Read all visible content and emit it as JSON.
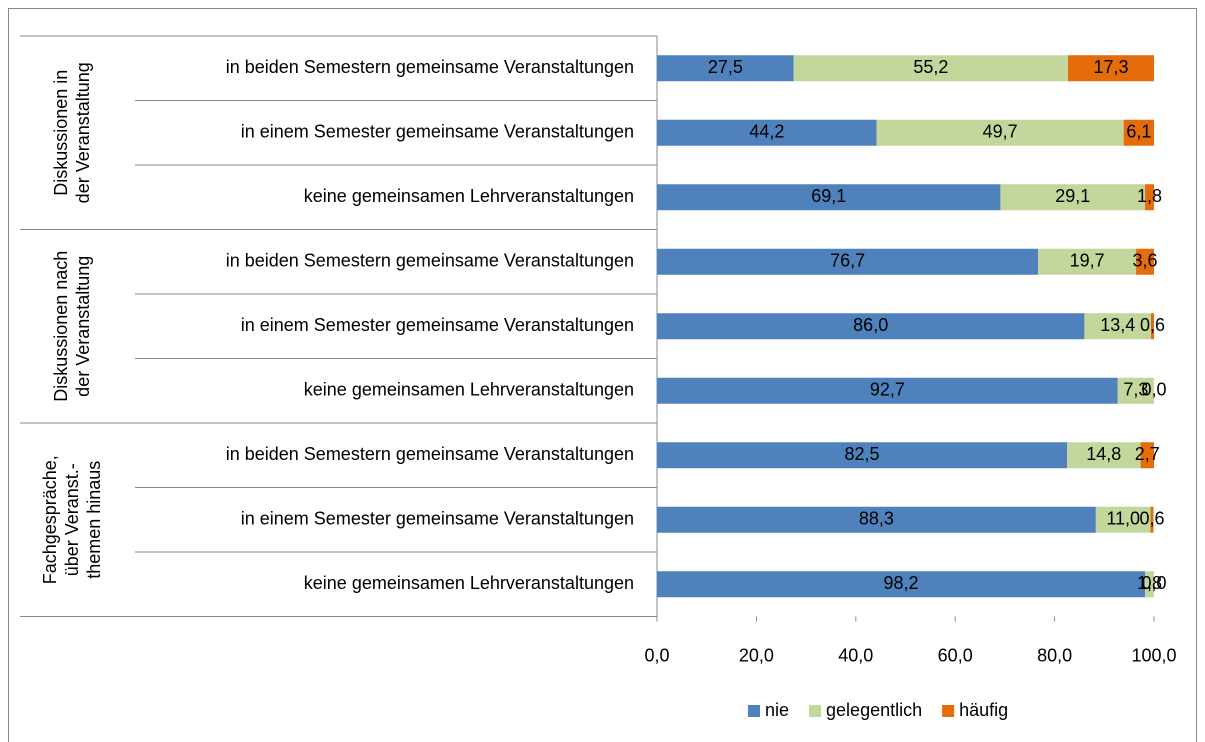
{
  "chart_data": {
    "type": "stacked_bar_horizontal",
    "groups": [
      {
        "label": [
          "Diskussionen in",
          "der Veranstaltung"
        ]
      },
      {
        "label": [
          "Diskussionen nach",
          "der Veranstaltung"
        ]
      },
      {
        "label": [
          "Fachgespräche,",
          "über Veranst.-",
          "themen hinaus"
        ]
      }
    ],
    "categories": [
      "in beiden Semestern gemeinsame Veranstaltungen",
      "in einem Semester gemeinsame Veranstaltungen",
      "keine gemeinsamen Lehrveranstaltungen",
      "in beiden Semestern gemeinsame Veranstaltungen",
      "in einem Semester gemeinsame Veranstaltungen",
      "keine gemeinsamen Lehrveranstaltungen",
      "in beiden Semestern gemeinsame Veranstaltungen",
      "in einem Semester gemeinsame Veranstaltungen",
      "keine gemeinsamen Lehrveranstaltungen"
    ],
    "series": [
      {
        "name": "nie",
        "color": "#4f81bd",
        "values": [
          27.5,
          44.2,
          69.1,
          76.7,
          86.0,
          92.7,
          82.5,
          88.3,
          98.2
        ],
        "value_labels": [
          "27,5",
          "44,2",
          "69,1",
          "76,7",
          "86,0",
          "92,7",
          "82,5",
          "88,3",
          "98,2"
        ]
      },
      {
        "name": "gelegentlich",
        "color": "#c3d69b",
        "values": [
          55.2,
          49.7,
          29.1,
          19.7,
          13.4,
          7.3,
          14.8,
          11.0,
          1.8
        ],
        "value_labels": [
          "55,2",
          "49,7",
          "29,1",
          "19,7",
          "13,4",
          "7,3",
          "14,8",
          "11,0",
          "1,8"
        ]
      },
      {
        "name": "häufig",
        "color": "#e46c0a",
        "values": [
          17.3,
          6.1,
          1.8,
          3.6,
          0.6,
          0.0,
          2.7,
          0.6,
          0.0
        ],
        "value_labels": [
          "17,3",
          "6,1",
          "1,8",
          "3,6",
          "0,6",
          "0,0",
          "2,7",
          "0,6",
          "0,0"
        ]
      }
    ],
    "xlim": [
      0,
      100
    ],
    "xticks": [
      {
        "value": 0,
        "label": "0,0"
      },
      {
        "value": 20,
        "label": "20,0"
      },
      {
        "value": 40,
        "label": "40,0"
      },
      {
        "value": 60,
        "label": "60,0"
      },
      {
        "value": 80,
        "label": "80,0"
      },
      {
        "value": 100,
        "label": "100,0"
      }
    ],
    "legend": "bottom"
  }
}
